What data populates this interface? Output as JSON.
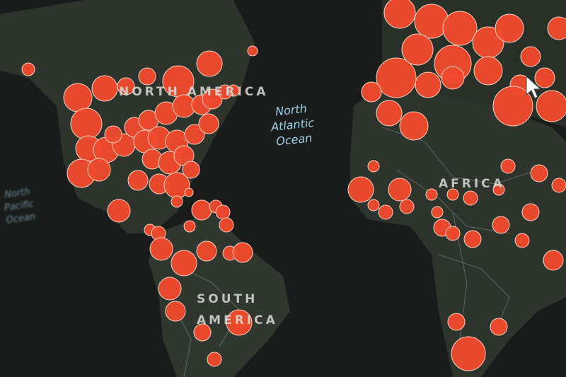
{
  "map": {
    "labels": {
      "north_america": "NORTH AMERICA",
      "south_america": "SOUTH AMERICA",
      "africa": "AFRICA",
      "north_atlantic": "North\nAtlantic\nOcean",
      "north_pacific": "North\nPacific\nOcean"
    },
    "colors": {
      "ocean": "#191c1a",
      "land": "#2c342c",
      "borders": "#8a8f8a",
      "marker": "#f24a2c",
      "marker_outline": "#ffd0c0",
      "ocean_label": "#9fd3ea"
    },
    "marker_type": "proportional circles",
    "cursor_icon": "mouse-pointer-icon"
  }
}
